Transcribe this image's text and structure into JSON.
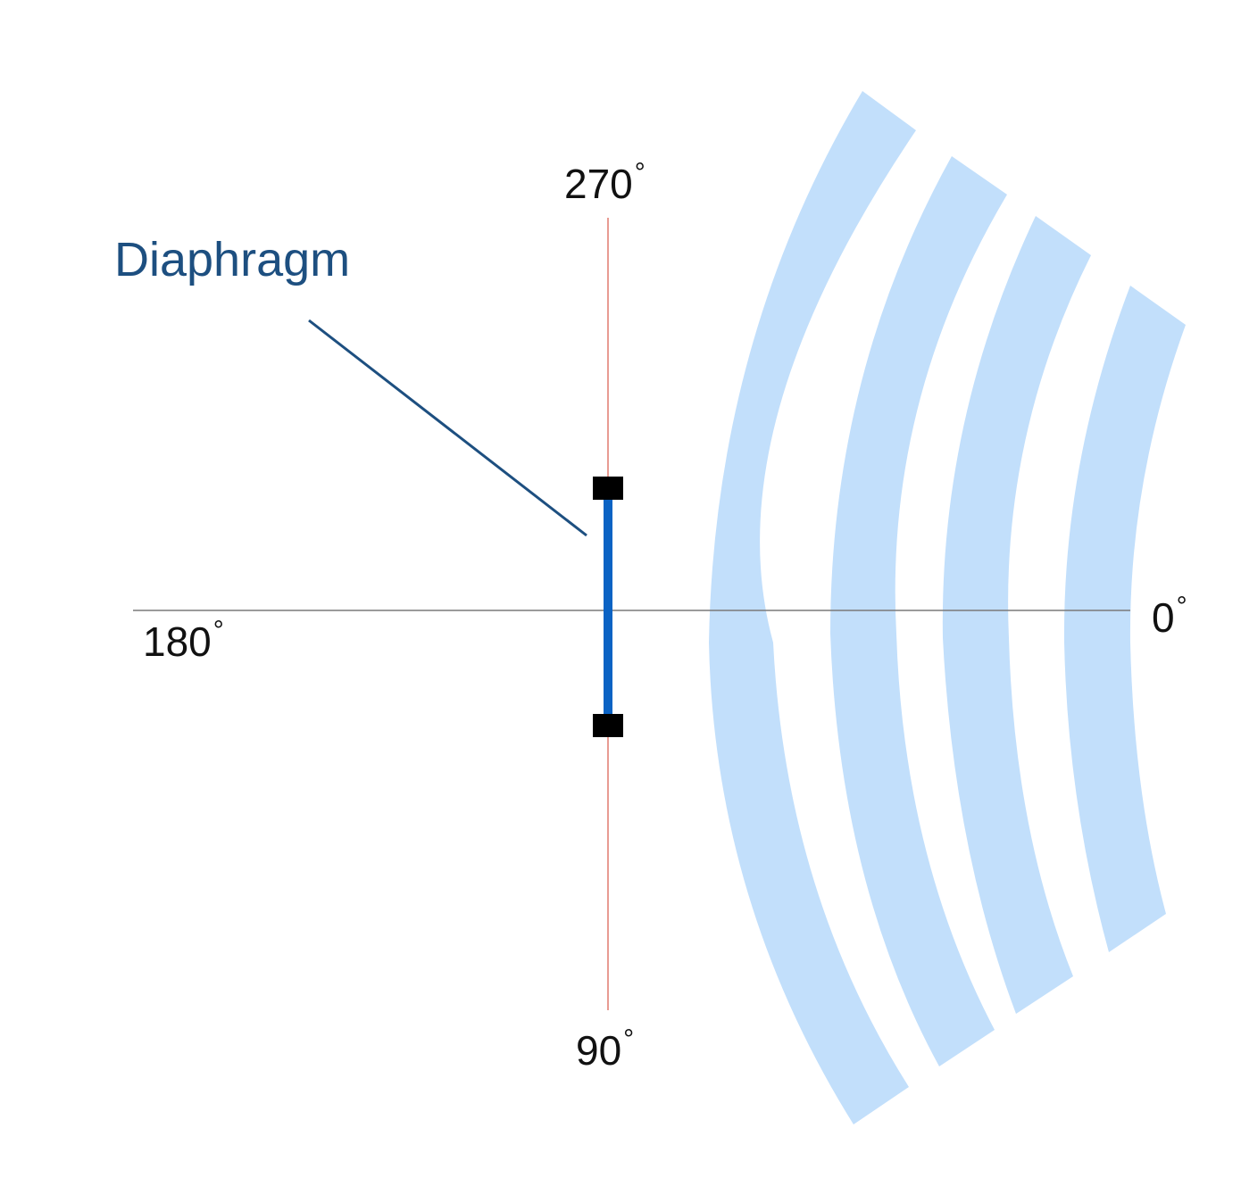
{
  "diagram": {
    "title_label": "Diaphragm",
    "angles": {
      "top": "270",
      "bottom": "90",
      "left": "180",
      "right": "0"
    },
    "degree_symbol": "°",
    "sound_wave_count": 4
  },
  "colors": {
    "diaphragm": "#0b63c4",
    "clamp": "#000000",
    "vertical_axis": "#e07a6e",
    "horizontal_axis": "#7a7a7a",
    "waves": "#c2dffb",
    "leader_line": "#1d4f80",
    "label_text": "#111111",
    "diaphragm_label_text": "#1d4f80"
  }
}
